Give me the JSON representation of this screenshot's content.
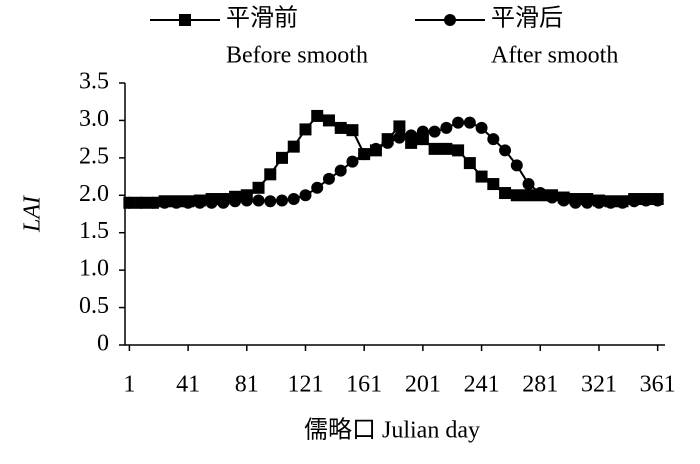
{
  "chart_data": {
    "type": "line",
    "y_label": "LAI",
    "x_label": "儒略口  Julian day",
    "x": [
      1,
      9,
      17,
      25,
      33,
      41,
      49,
      57,
      65,
      73,
      81,
      89,
      97,
      105,
      113,
      121,
      129,
      137,
      145,
      153,
      161,
      169,
      177,
      185,
      193,
      201,
      209,
      217,
      225,
      233,
      241,
      249,
      257,
      265,
      273,
      281,
      289,
      297,
      305,
      313,
      321,
      329,
      337,
      345,
      353,
      361
    ],
    "series": [
      {
        "name": "平滑前",
        "name_en": "Before smooth",
        "color": "#000000",
        "marker": "square",
        "values": [
          1.9,
          1.9,
          1.9,
          1.92,
          1.92,
          1.92,
          1.93,
          1.95,
          1.95,
          1.98,
          2.0,
          2.1,
          2.28,
          2.5,
          2.65,
          2.88,
          3.06,
          3.0,
          2.9,
          2.87,
          2.55,
          2.6,
          2.75,
          2.92,
          2.7,
          2.75,
          2.62,
          2.62,
          2.6,
          2.43,
          2.25,
          2.15,
          2.03,
          2.0,
          2.0,
          2.0,
          2.0,
          1.97,
          1.95,
          1.95,
          1.93,
          1.92,
          1.92,
          1.95,
          1.95,
          1.95
        ]
      },
      {
        "name": "平滑后",
        "name_en": "After smooth",
        "color": "#000000",
        "marker": "circle",
        "values": [
          1.9,
          1.9,
          1.9,
          1.9,
          1.9,
          1.9,
          1.9,
          1.9,
          1.9,
          1.92,
          1.93,
          1.93,
          1.92,
          1.93,
          1.95,
          2.0,
          2.1,
          2.22,
          2.33,
          2.45,
          2.55,
          2.62,
          2.7,
          2.77,
          2.8,
          2.85,
          2.85,
          2.9,
          2.97,
          2.97,
          2.9,
          2.75,
          2.6,
          2.4,
          2.15,
          2.03,
          1.97,
          1.93,
          1.9,
          1.9,
          1.9,
          1.9,
          1.9,
          1.92,
          1.93,
          1.93
        ]
      }
    ],
    "xlim": [
      -2,
      366
    ],
    "xticks": [
      1,
      41,
      81,
      121,
      161,
      201,
      241,
      281,
      321,
      361
    ],
    "ylim": [
      0,
      3.5
    ],
    "yticks": [
      0,
      0.5,
      {
        "value": 1,
        "label": "1.0"
      },
      1.5,
      {
        "value": 2,
        "label": "2.0"
      },
      2.5,
      {
        "value": 3,
        "label": "3.0"
      },
      3.5
    ],
    "grid": false
  }
}
